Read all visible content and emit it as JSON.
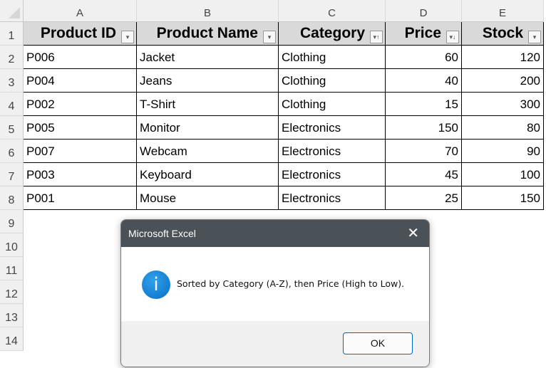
{
  "columns": [
    "A",
    "B",
    "C",
    "D",
    "E"
  ],
  "rows": [
    "1",
    "2",
    "3",
    "4",
    "5",
    "6",
    "7",
    "8",
    "9",
    "10",
    "11",
    "12",
    "13",
    "14"
  ],
  "headers": [
    {
      "label": "Product ID",
      "filter": "filter-dropdown"
    },
    {
      "label": "Product Name",
      "filter": "filter-dropdown"
    },
    {
      "label": "Category",
      "filter": "sort-ascending"
    },
    {
      "label": "Price",
      "filter": "sort-descending"
    },
    {
      "label": "Stock",
      "filter": "filter-dropdown"
    }
  ],
  "data": [
    [
      "P006",
      "Jacket",
      "Clothing",
      "60",
      "120"
    ],
    [
      "P004",
      "Jeans",
      "Clothing",
      "40",
      "200"
    ],
    [
      "P002",
      "T-Shirt",
      "Clothing",
      "15",
      "300"
    ],
    [
      "P005",
      "Monitor",
      "Electronics",
      "150",
      "80"
    ],
    [
      "P007",
      "Webcam",
      "Electronics",
      "70",
      "90"
    ],
    [
      "P003",
      "Keyboard",
      "Electronics",
      "45",
      "100"
    ],
    [
      "P001",
      "Mouse",
      "Electronics",
      "25",
      "150"
    ]
  ],
  "dialog": {
    "title": "Microsoft Excel",
    "message": "Sorted by Category (A-Z), then Price (High to Low).",
    "ok": "OK",
    "icon": "info-icon"
  }
}
